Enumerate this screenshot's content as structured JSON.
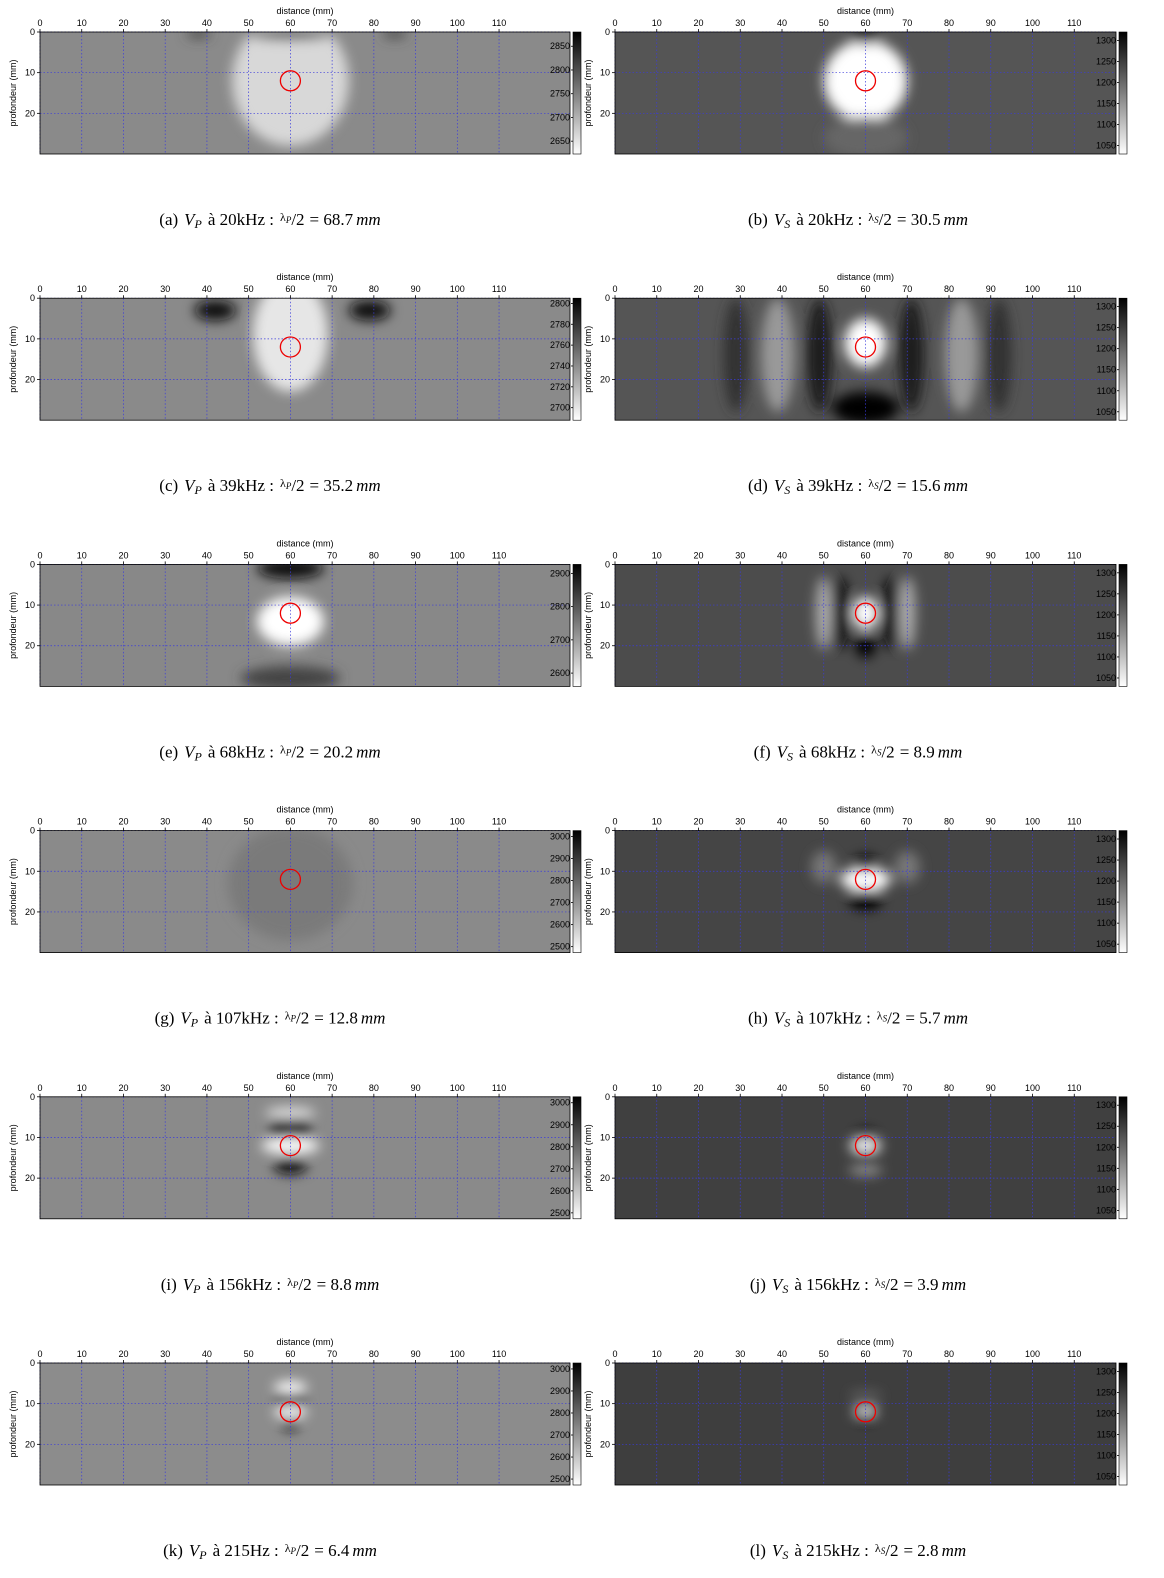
{
  "panels": [
    {
      "xlabel": "distance (mm)",
      "ylabel": "profondeur (mm)",
      "xlim": [
        0,
        127
      ],
      "xticks": [
        0,
        10,
        20,
        30,
        40,
        50,
        60,
        70,
        80,
        90,
        100,
        110
      ],
      "ylim": [
        0,
        30
      ],
      "yticks": [
        0,
        10,
        20
      ],
      "clim": [
        2623,
        2880
      ],
      "cticks": [
        2650,
        2700,
        2750,
        2800,
        2850
      ],
      "inclusion": {
        "x": 60,
        "depth": 12
      },
      "caption": {
        "tag": "(a)",
        "var": "V",
        "var_sub": "P",
        "freq": "à 20kHz :",
        "ratio": "λ",
        "ratio_sub": "P",
        "ratio_den": "/2",
        "eq": "= 68.7",
        "unit": "mm"
      }
    },
    {
      "xlabel": "distance (mm)",
      "ylabel": "profondeur (mm)",
      "xlim": [
        0,
        120
      ],
      "xticks": [
        0,
        10,
        20,
        30,
        40,
        50,
        60,
        70,
        80,
        90,
        100,
        110
      ],
      "ylim": [
        0,
        30
      ],
      "yticks": [
        0,
        10,
        20
      ],
      "clim": [
        1030,
        1320
      ],
      "cticks": [
        1050,
        1100,
        1150,
        1200,
        1250,
        1300
      ],
      "inclusion": {
        "x": 60,
        "depth": 12
      },
      "caption": {
        "tag": "(b)",
        "var": "V",
        "var_sub": "S",
        "freq": "à 20kHz :",
        "ratio": "λ",
        "ratio_sub": "S",
        "ratio_den": "/2",
        "eq": "= 30.5",
        "unit": "mm"
      }
    },
    {
      "xlabel": "distance (mm)",
      "ylabel": "profondeur (mm)",
      "xlim": [
        0,
        127
      ],
      "xticks": [
        0,
        10,
        20,
        30,
        40,
        50,
        60,
        70,
        80,
        90,
        100,
        110
      ],
      "ylim": [
        0,
        30
      ],
      "yticks": [
        0,
        10,
        20
      ],
      "clim": [
        2688,
        2805
      ],
      "cticks": [
        2700,
        2720,
        2740,
        2760,
        2780,
        2800
      ],
      "inclusion": {
        "x": 60,
        "depth": 12
      },
      "caption": {
        "tag": "(c)",
        "var": "V",
        "var_sub": "P",
        "freq": "à 39kHz :",
        "ratio": "λ",
        "ratio_sub": "P",
        "ratio_den": "/2",
        "eq": "= 35.2",
        "unit": "mm"
      }
    },
    {
      "xlabel": "distance (mm)",
      "ylabel": "profondeur (mm)",
      "xlim": [
        0,
        120
      ],
      "xticks": [
        0,
        10,
        20,
        30,
        40,
        50,
        60,
        70,
        80,
        90,
        100,
        110
      ],
      "ylim": [
        0,
        30
      ],
      "yticks": [
        0,
        10,
        20
      ],
      "clim": [
        1030,
        1320
      ],
      "cticks": [
        1050,
        1100,
        1150,
        1200,
        1250,
        1300
      ],
      "inclusion": {
        "x": 60,
        "depth": 12
      },
      "caption": {
        "tag": "(d)",
        "var": "V",
        "var_sub": "S",
        "freq": "à 39kHz :",
        "ratio": "λ",
        "ratio_sub": "S",
        "ratio_den": "/2",
        "eq": "= 15.6",
        "unit": "mm"
      }
    },
    {
      "xlabel": "distance (mm)",
      "ylabel": "profondeur (mm)",
      "xlim": [
        0,
        127
      ],
      "xticks": [
        0,
        10,
        20,
        30,
        40,
        50,
        60,
        70,
        80,
        90,
        100,
        110
      ],
      "ylim": [
        0,
        30
      ],
      "yticks": [
        0,
        10,
        20
      ],
      "clim": [
        2560,
        2927
      ],
      "cticks": [
        2600,
        2700,
        2800,
        2900
      ],
      "inclusion": {
        "x": 60,
        "depth": 12
      },
      "caption": {
        "tag": "(e)",
        "var": "V",
        "var_sub": "P",
        "freq": "à 68kHz :",
        "ratio": "λ",
        "ratio_sub": "P",
        "ratio_den": "/2",
        "eq": "= 20.2",
        "unit": "mm"
      }
    },
    {
      "xlabel": "distance (mm)",
      "ylabel": "profondeur (mm)",
      "xlim": [
        0,
        120
      ],
      "xticks": [
        0,
        10,
        20,
        30,
        40,
        50,
        60,
        70,
        80,
        90,
        100,
        110
      ],
      "ylim": [
        0,
        30
      ],
      "yticks": [
        0,
        10,
        20
      ],
      "clim": [
        1030,
        1320
      ],
      "cticks": [
        1050,
        1100,
        1150,
        1200,
        1250,
        1300
      ],
      "inclusion": {
        "x": 60,
        "depth": 12
      },
      "caption": {
        "tag": "(f)",
        "var": "V",
        "var_sub": "S",
        "freq": "à 68kHz :",
        "ratio": "λ",
        "ratio_sub": "S",
        "ratio_den": "/2",
        "eq": "= 8.9",
        "unit": "mm"
      }
    },
    {
      "xlabel": "distance (mm)",
      "ylabel": "profondeur (mm)",
      "xlim": [
        0,
        127
      ],
      "xticks": [
        0,
        10,
        20,
        30,
        40,
        50,
        60,
        70,
        80,
        90,
        100,
        110
      ],
      "ylim": [
        0,
        30
      ],
      "yticks": [
        0,
        10,
        20
      ],
      "clim": [
        2473,
        3027
      ],
      "cticks": [
        2500,
        2600,
        2700,
        2800,
        2900,
        3000
      ],
      "inclusion": {
        "x": 60,
        "depth": 12
      },
      "caption": {
        "tag": "(g)",
        "var": "V",
        "var_sub": "P",
        "freq": "à 107kHz :",
        "ratio": "λ",
        "ratio_sub": "P",
        "ratio_den": "/2",
        "eq": "= 12.8",
        "unit": "mm"
      }
    },
    {
      "xlabel": "distance (mm)",
      "ylabel": "profondeur (mm)",
      "xlim": [
        0,
        120
      ],
      "xticks": [
        0,
        10,
        20,
        30,
        40,
        50,
        60,
        70,
        80,
        90,
        100,
        110
      ],
      "ylim": [
        0,
        30
      ],
      "yticks": [
        0,
        10,
        20
      ],
      "clim": [
        1030,
        1320
      ],
      "cticks": [
        1050,
        1100,
        1150,
        1200,
        1250,
        1300
      ],
      "inclusion": {
        "x": 60,
        "depth": 12
      },
      "caption": {
        "tag": "(h)",
        "var": "V",
        "var_sub": "S",
        "freq": "à 107kHz :",
        "ratio": "λ",
        "ratio_sub": "S",
        "ratio_den": "/2",
        "eq": "= 5.7",
        "unit": "mm"
      }
    },
    {
      "xlabel": "distance (mm)",
      "ylabel": "profondeur (mm)",
      "xlim": [
        0,
        127
      ],
      "xticks": [
        0,
        10,
        20,
        30,
        40,
        50,
        60,
        70,
        80,
        90,
        100,
        110
      ],
      "ylim": [
        0,
        30
      ],
      "yticks": [
        0,
        10,
        20
      ],
      "clim": [
        2473,
        3027
      ],
      "cticks": [
        2500,
        2600,
        2700,
        2800,
        2900,
        3000
      ],
      "inclusion": {
        "x": 60,
        "depth": 12
      },
      "caption": {
        "tag": "(i)",
        "var": "V",
        "var_sub": "P",
        "freq": "à 156kHz :",
        "ratio": "λ",
        "ratio_sub": "P",
        "ratio_den": "/2",
        "eq": "= 8.8",
        "unit": "mm"
      }
    },
    {
      "xlabel": "distance (mm)",
      "ylabel": "profondeur (mm)",
      "xlim": [
        0,
        120
      ],
      "xticks": [
        0,
        10,
        20,
        30,
        40,
        50,
        60,
        70,
        80,
        90,
        100,
        110
      ],
      "ylim": [
        0,
        30
      ],
      "yticks": [
        0,
        10,
        20
      ],
      "clim": [
        1030,
        1320
      ],
      "cticks": [
        1050,
        1100,
        1150,
        1200,
        1250,
        1300
      ],
      "inclusion": {
        "x": 60,
        "depth": 12
      },
      "caption": {
        "tag": "(j)",
        "var": "V",
        "var_sub": "S",
        "freq": "à 156kHz :",
        "ratio": "λ",
        "ratio_sub": "S",
        "ratio_den": "/2",
        "eq": "= 3.9",
        "unit": "mm"
      }
    },
    {
      "xlabel": "distance (mm)",
      "ylabel": "profondeur (mm)",
      "xlim": [
        0,
        127
      ],
      "xticks": [
        0,
        10,
        20,
        30,
        40,
        50,
        60,
        70,
        80,
        90,
        100,
        110
      ],
      "ylim": [
        0,
        30
      ],
      "yticks": [
        0,
        10,
        20
      ],
      "clim": [
        2473,
        3027
      ],
      "cticks": [
        2500,
        2600,
        2700,
        2800,
        2900,
        3000
      ],
      "inclusion": {
        "x": 60,
        "depth": 12
      },
      "caption": {
        "tag": "(k)",
        "var": "V",
        "var_sub": "P",
        "freq": "à 215Hz :",
        "ratio": "λ",
        "ratio_sub": "P",
        "ratio_den": "/2",
        "eq": "= 6.4",
        "unit": "mm"
      }
    },
    {
      "xlabel": "distance (mm)",
      "ylabel": "profondeur (mm)",
      "xlim": [
        0,
        120
      ],
      "xticks": [
        0,
        10,
        20,
        30,
        40,
        50,
        60,
        70,
        80,
        90,
        100,
        110
      ],
      "ylim": [
        0,
        30
      ],
      "yticks": [
        0,
        10,
        20
      ],
      "clim": [
        1030,
        1320
      ],
      "cticks": [
        1050,
        1100,
        1150,
        1200,
        1250,
        1300
      ],
      "inclusion": {
        "x": 60,
        "depth": 12
      },
      "caption": {
        "tag": "(l)",
        "var": "V",
        "var_sub": "S",
        "freq": "à 215kHz :",
        "ratio": "λ",
        "ratio_sub": "S",
        "ratio_den": "/2",
        "eq": "= 2.8",
        "unit": "mm"
      }
    }
  ]
}
